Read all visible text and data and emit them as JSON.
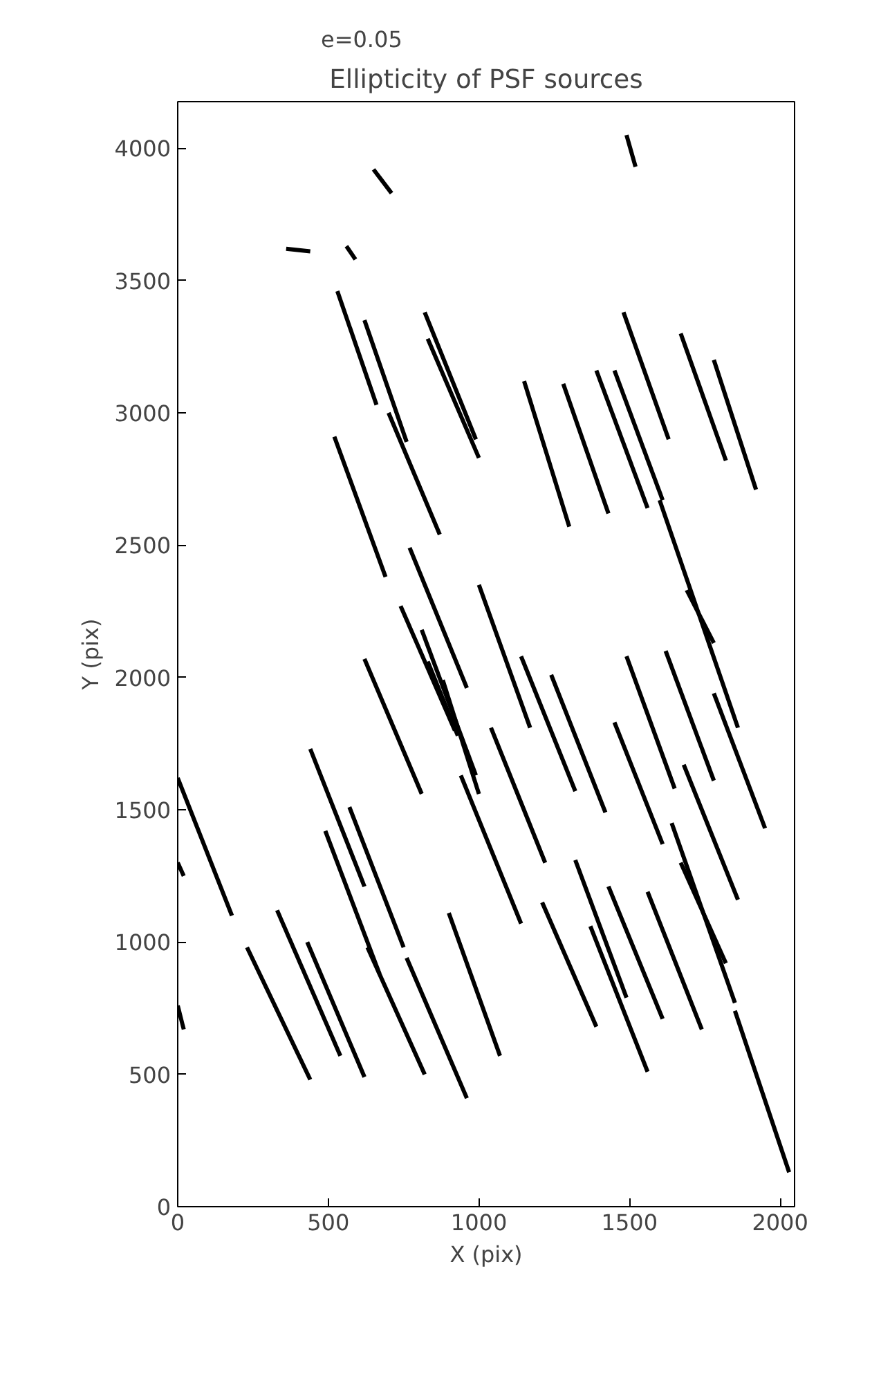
{
  "chart_data": {
    "type": "line",
    "title": "Ellipticity of PSF sources",
    "xlabel": "X (pix)",
    "ylabel": "Y (pix)",
    "xlim": [
      0,
      2048
    ],
    "ylim": [
      0,
      4176
    ],
    "xticks": [
      0,
      500,
      1000,
      1500,
      2000
    ],
    "yticks": [
      0,
      500,
      1000,
      1500,
      2000,
      2500,
      3000,
      3500,
      4000
    ],
    "grid": false,
    "legend": "top left",
    "marker": "none",
    "line_style": "solid",
    "series": [
      {
        "name": "e=0.05",
        "color": "#000000",
        "x": [
          1490,
          1520
        ],
        "values": [
          4050,
          3930
        ]
      },
      {
        "color": "#000000",
        "x": [
          650,
          710
        ],
        "values": [
          3920,
          3830
        ]
      },
      {
        "color": "#000000",
        "x": [
          360,
          440
        ],
        "values": [
          3620,
          3610
        ]
      },
      {
        "color": "#000000",
        "x": [
          560,
          590
        ],
        "values": [
          3630,
          3580
        ]
      },
      {
        "color": "#000000",
        "x": [
          530,
          660
        ],
        "values": [
          3460,
          3030
        ]
      },
      {
        "color": "#000000",
        "x": [
          620,
          760
        ],
        "values": [
          3350,
          2890
        ]
      },
      {
        "color": "#000000",
        "x": [
          820,
          990
        ],
        "values": [
          3380,
          2900
        ]
      },
      {
        "color": "#000000",
        "x": [
          830,
          1000
        ],
        "values": [
          3280,
          2830
        ]
      },
      {
        "color": "#000000",
        "x": [
          1150,
          1300
        ],
        "values": [
          3120,
          2570
        ]
      },
      {
        "color": "#000000",
        "x": [
          1280,
          1430
        ],
        "values": [
          3110,
          2620
        ]
      },
      {
        "color": "#000000",
        "x": [
          1390,
          1560
        ],
        "values": [
          3160,
          2640
        ]
      },
      {
        "color": "#000000",
        "x": [
          1450,
          1610
        ],
        "values": [
          3160,
          2670
        ]
      },
      {
        "color": "#000000",
        "x": [
          1480,
          1630
        ],
        "values": [
          3380,
          2900
        ]
      },
      {
        "color": "#000000",
        "x": [
          1670,
          1820
        ],
        "values": [
          3300,
          2820
        ]
      },
      {
        "color": "#000000",
        "x": [
          1780,
          1920
        ],
        "values": [
          3200,
          2710
        ]
      },
      {
        "color": "#000000",
        "x": [
          520,
          690
        ],
        "values": [
          2910,
          2380
        ]
      },
      {
        "color": "#000000",
        "x": [
          700,
          870
        ],
        "values": [
          3000,
          2540
        ]
      },
      {
        "color": "#000000",
        "x": [
          770,
          960
        ],
        "values": [
          2490,
          1960
        ]
      },
      {
        "color": "#000000",
        "x": [
          1000,
          1170
        ],
        "values": [
          2350,
          1810
        ]
      },
      {
        "color": "#000000",
        "x": [
          740,
          920
        ],
        "values": [
          2270,
          1800
        ]
      },
      {
        "color": "#000000",
        "x": [
          620,
          810
        ],
        "values": [
          2070,
          1560
        ]
      },
      {
        "color": "#000000",
        "x": [
          810,
          990
        ],
        "values": [
          2180,
          1630
        ]
      },
      {
        "color": "#000000",
        "x": [
          830,
          930
        ],
        "values": [
          2060,
          1780
        ]
      },
      {
        "color": "#000000",
        "x": [
          880,
          1000
        ],
        "values": [
          1990,
          1560
        ]
      },
      {
        "color": "#000000",
        "x": [
          440,
          620
        ],
        "values": [
          1730,
          1210
        ]
      },
      {
        "color": "#000000",
        "x": [
          940,
          1140
        ],
        "values": [
          1630,
          1070
        ]
      },
      {
        "color": "#000000",
        "x": [
          0,
          180
        ],
        "values": [
          1620,
          1100
        ]
      },
      {
        "color": "#000000",
        "x": [
          0,
          20
        ],
        "values": [
          1300,
          1250
        ]
      },
      {
        "color": "#000000",
        "x": [
          0,
          20
        ],
        "values": [
          760,
          670
        ]
      },
      {
        "color": "#000000",
        "x": [
          490,
          670
        ],
        "values": [
          1420,
          880
        ]
      },
      {
        "color": "#000000",
        "x": [
          630,
          820
        ],
        "values": [
          980,
          500
        ]
      },
      {
        "color": "#000000",
        "x": [
          570,
          750
        ],
        "values": [
          1510,
          980
        ]
      },
      {
        "color": "#000000",
        "x": [
          1140,
          1320
        ],
        "values": [
          2080,
          1570
        ]
      },
      {
        "color": "#000000",
        "x": [
          1240,
          1420
        ],
        "values": [
          2010,
          1490
        ]
      },
      {
        "color": "#000000",
        "x": [
          1040,
          1220
        ],
        "values": [
          1810,
          1300
        ]
      },
      {
        "color": "#000000",
        "x": [
          1490,
          1650
        ],
        "values": [
          2080,
          1580
        ]
      },
      {
        "color": "#000000",
        "x": [
          1620,
          1780
        ],
        "values": [
          2100,
          1610
        ]
      },
      {
        "color": "#000000",
        "x": [
          1450,
          1610
        ],
        "values": [
          1830,
          1370
        ]
      },
      {
        "color": "#000000",
        "x": [
          1690,
          1780
        ],
        "values": [
          2330,
          2130
        ]
      },
      {
        "color": "#000000",
        "x": [
          1600,
          1860
        ],
        "values": [
          2670,
          1810
        ]
      },
      {
        "color": "#000000",
        "x": [
          1780,
          1950
        ],
        "values": [
          1940,
          1430
        ]
      },
      {
        "color": "#000000",
        "x": [
          1680,
          1860
        ],
        "values": [
          1670,
          1160
        ]
      },
      {
        "color": "#000000",
        "x": [
          1640,
          1850
        ],
        "values": [
          1450,
          770
        ]
      },
      {
        "color": "#000000",
        "x": [
          1210,
          1390
        ],
        "values": [
          1150,
          680
        ]
      },
      {
        "color": "#000000",
        "x": [
          1320,
          1490
        ],
        "values": [
          1310,
          790
        ]
      },
      {
        "color": "#000000",
        "x": [
          1370,
          1560
        ],
        "values": [
          1060,
          510
        ]
      },
      {
        "color": "#000000",
        "x": [
          1430,
          1610
        ],
        "values": [
          1210,
          710
        ]
      },
      {
        "color": "#000000",
        "x": [
          1560,
          1740
        ],
        "values": [
          1190,
          670
        ]
      },
      {
        "color": "#000000",
        "x": [
          1670,
          1820
        ],
        "values": [
          1300,
          920
        ]
      },
      {
        "color": "#000000",
        "x": [
          1850,
          2030
        ],
        "values": [
          740,
          130
        ]
      },
      {
        "color": "#000000",
        "x": [
          900,
          1070
        ],
        "values": [
          1110,
          570
        ]
      },
      {
        "color": "#000000",
        "x": [
          760,
          960
        ],
        "values": [
          940,
          410
        ]
      },
      {
        "color": "#000000",
        "x": [
          230,
          440
        ],
        "values": [
          980,
          480
        ]
      },
      {
        "color": "#000000",
        "x": [
          330,
          540
        ],
        "values": [
          1120,
          570
        ]
      },
      {
        "color": "#000000",
        "x": [
          430,
          620
        ],
        "values": [
          1000,
          490
        ]
      }
    ]
  }
}
